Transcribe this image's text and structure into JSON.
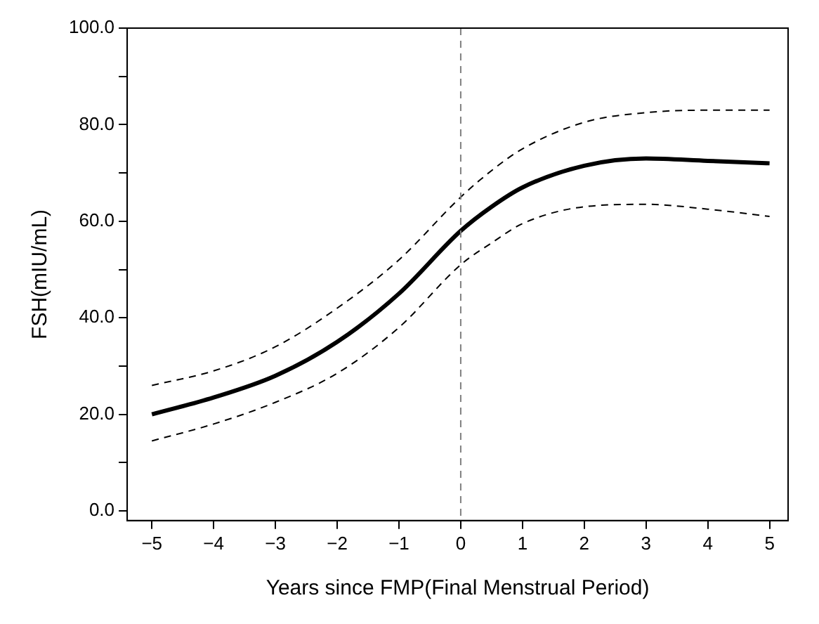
{
  "chart_data": {
    "type": "line",
    "xlabel": "Years since FMP(Final Menstrual Period)",
    "ylabel": "FSH(mIU/mL)",
    "xlim": [
      -5.4,
      5.3
    ],
    "ylim": [
      -2,
      100
    ],
    "xticks": [
      {
        "value": -5,
        "label": "−5"
      },
      {
        "value": -4,
        "label": "−4"
      },
      {
        "value": -3,
        "label": "−3"
      },
      {
        "value": -2,
        "label": "−2"
      },
      {
        "value": -1,
        "label": "−1"
      },
      0,
      1,
      2,
      3,
      4,
      5
    ],
    "yticks": [
      {
        "value": 0,
        "label": "0.0"
      },
      {
        "value": 10,
        "label": null
      },
      {
        "value": 20,
        "label": "20.0"
      },
      {
        "value": 30,
        "label": null
      },
      {
        "value": 40,
        "label": "40.0"
      },
      {
        "value": 50,
        "label": null
      },
      {
        "value": 60,
        "label": "60.0"
      },
      {
        "value": 70,
        "label": null
      },
      {
        "value": 80,
        "label": "80.0"
      },
      {
        "value": 90,
        "label": null
      },
      {
        "value": 100,
        "label": "100.0"
      }
    ],
    "grid": false,
    "legend": false,
    "marker": "none",
    "line_style": "solid",
    "x": [
      -5,
      -4,
      -3,
      -2,
      -1,
      0,
      0.5,
      1,
      2,
      3,
      4,
      5
    ],
    "series": [
      {
        "color": "#000000",
        "values": [
          20,
          23.5,
          28,
          35,
          45,
          58,
          63,
          67,
          71.5,
          73,
          72.5,
          72
        ]
      },
      {
        "color": "#000000",
        "line_style": "dashed",
        "values": [
          26,
          29,
          34,
          42,
          52,
          65,
          70.5,
          75,
          80.5,
          82.5,
          83,
          83
        ]
      },
      {
        "color": "#000000",
        "line_style": "dashed",
        "values": [
          14.5,
          18,
          22.5,
          28.5,
          38,
          51,
          55.5,
          59.5,
          63,
          63.5,
          62.5,
          61
        ]
      }
    ],
    "ref_lines": [
      {
        "axis": "x",
        "value": 0,
        "color": "#808080",
        "line_style": "dashed"
      }
    ]
  }
}
